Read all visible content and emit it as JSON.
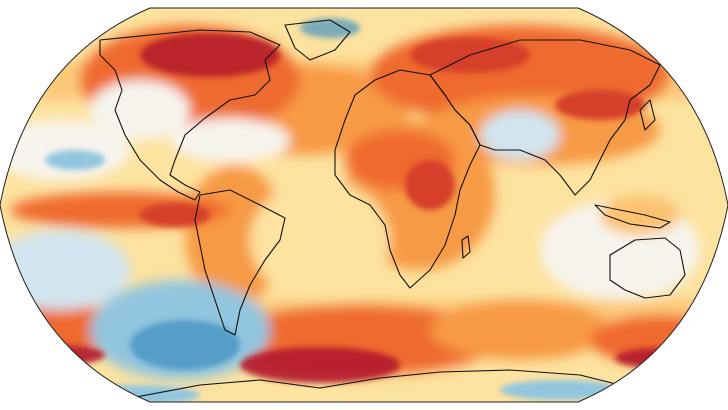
{
  "map": {
    "projection": "robinson-like",
    "background": "#ffffff",
    "ocean_base_color": "#fde3a0",
    "coastline_color": "#111111",
    "frame_stroke_color": "#222222",
    "palette": {
      "deep_red": "#b2182b",
      "red": "#d6402b",
      "orange_red": "#ef6b2e",
      "orange": "#f79a45",
      "light_orange": "#fbc271",
      "pale_yellow": "#fde3a0",
      "near_white": "#f7f4ee",
      "light_blue": "#d1e5f0",
      "blue": "#92c5de",
      "deep_blue": "#4393c3"
    }
  }
}
